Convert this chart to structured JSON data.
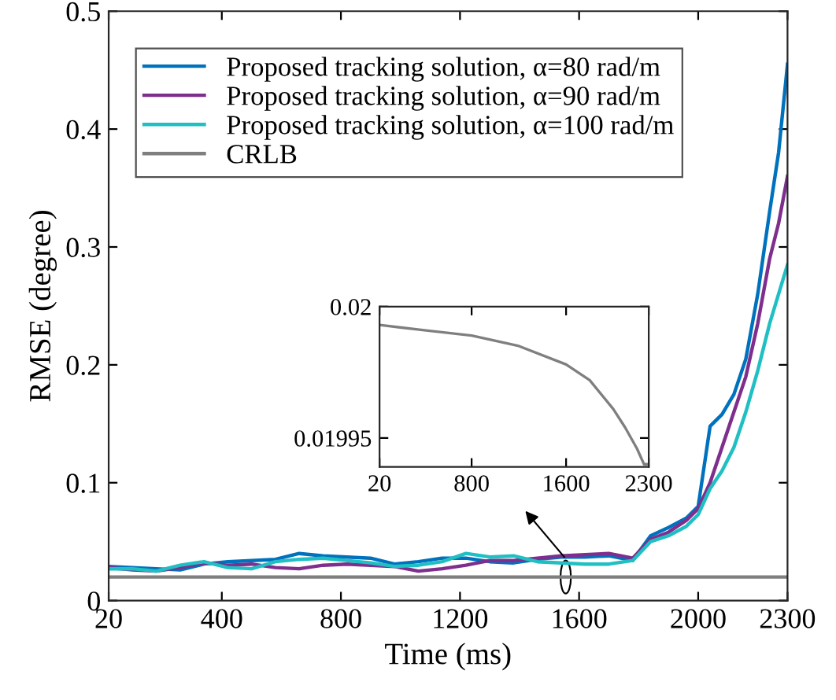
{
  "chart_data": [
    {
      "type": "line",
      "xlabel": "Time (ms)",
      "ylabel": "RMSE (degree)",
      "xlim": [
        20,
        2300
      ],
      "xticks": [
        20,
        400,
        800,
        1200,
        1600,
        2000,
        2300
      ],
      "ylim": [
        0,
        0.5
      ],
      "yticks": [
        0,
        0.1,
        0.2,
        0.3,
        0.4,
        0.5
      ],
      "legend": "top left",
      "grid": false,
      "line_style": "solid",
      "marker": "none",
      "x": [
        20,
        100,
        180,
        260,
        340,
        420,
        500,
        580,
        660,
        740,
        820,
        900,
        980,
        1060,
        1140,
        1220,
        1300,
        1380,
        1460,
        1540,
        1620,
        1700,
        1780,
        1840,
        1900,
        1960,
        2000,
        2040,
        2080,
        2120,
        2160,
        2200,
        2240,
        2270,
        2300
      ],
      "series": [
        {
          "name": "Proposed tracking solution, α=80 rad/m",
          "color": "#0072bd",
          "values": [
            0.029,
            0.028,
            0.027,
            0.026,
            0.031,
            0.033,
            0.034,
            0.035,
            0.04,
            0.038,
            0.037,
            0.036,
            0.031,
            0.033,
            0.036,
            0.036,
            0.033,
            0.032,
            0.035,
            0.037,
            0.037,
            0.038,
            0.034,
            0.055,
            0.062,
            0.07,
            0.08,
            0.148,
            0.158,
            0.175,
            0.205,
            0.26,
            0.33,
            0.38,
            0.455
          ]
        },
        {
          "name": "Proposed tracking solution, α=90 rad/m",
          "color": "#7e2f8e",
          "values": [
            0.028,
            0.026,
            0.025,
            0.028,
            0.032,
            0.03,
            0.031,
            0.028,
            0.027,
            0.03,
            0.031,
            0.03,
            0.029,
            0.025,
            0.027,
            0.03,
            0.034,
            0.034,
            0.036,
            0.038,
            0.039,
            0.04,
            0.036,
            0.052,
            0.058,
            0.068,
            0.078,
            0.1,
            0.13,
            0.16,
            0.19,
            0.235,
            0.29,
            0.32,
            0.36
          ]
        },
        {
          "name": "Proposed tracking solution, α=100 rad/m",
          "color": "#1fbfc4",
          "values": [
            0.027,
            0.027,
            0.025,
            0.03,
            0.033,
            0.028,
            0.027,
            0.033,
            0.035,
            0.036,
            0.034,
            0.032,
            0.029,
            0.03,
            0.033,
            0.04,
            0.037,
            0.038,
            0.033,
            0.032,
            0.031,
            0.031,
            0.034,
            0.05,
            0.055,
            0.063,
            0.073,
            0.095,
            0.11,
            0.13,
            0.16,
            0.195,
            0.235,
            0.26,
            0.285
          ]
        },
        {
          "name": "CRLB",
          "color": "#7f7f7f",
          "x": [
            20,
            2300
          ],
          "values": [
            0.02,
            0.02
          ]
        }
      ]
    },
    {
      "type": "line",
      "xlim": [
        20,
        2300
      ],
      "xticks": [
        20,
        800,
        1600,
        2300
      ],
      "ylim": [
        0.019939,
        0.02
      ],
      "yticks": [
        0.01995,
        0.02
      ],
      "grid": false,
      "line_style": "solid",
      "marker": "none",
      "x": [
        20,
        400,
        800,
        1200,
        1600,
        1800,
        2000,
        2100,
        2200,
        2260,
        2300
      ],
      "series": [
        {
          "color": "#7f7f7f",
          "values": [
            0.019993,
            0.019991,
            0.019989,
            0.019985,
            0.019978,
            0.019972,
            0.019961,
            0.019954,
            0.019946,
            0.01994,
            0.01994
          ]
        }
      ]
    }
  ]
}
